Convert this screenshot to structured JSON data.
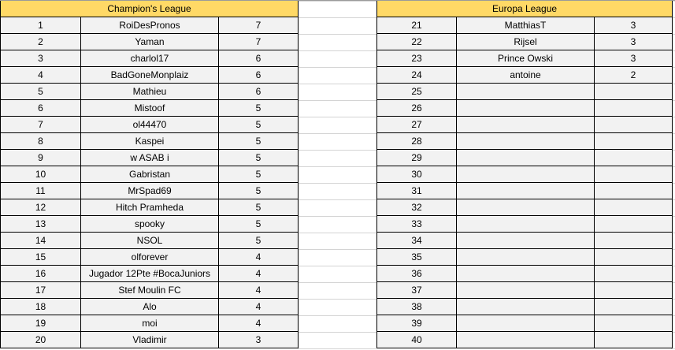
{
  "colors": {
    "header": "#ffd966",
    "cell": "#f2f2f2",
    "border": "#000000"
  },
  "champions_league": {
    "title": "Champion's League",
    "rows": [
      {
        "rank": "1",
        "name": "RoiDesPronos",
        "points": "7"
      },
      {
        "rank": "2",
        "name": "Yaman",
        "points": "7"
      },
      {
        "rank": "3",
        "name": "charlol17",
        "points": "6"
      },
      {
        "rank": "4",
        "name": "BadGoneMonplaiz",
        "points": "6"
      },
      {
        "rank": "5",
        "name": "Mathieu",
        "points": "6"
      },
      {
        "rank": "6",
        "name": "Mistoof",
        "points": "5"
      },
      {
        "rank": "7",
        "name": "ol44470",
        "points": "5"
      },
      {
        "rank": "8",
        "name": "Kaspei",
        "points": "5"
      },
      {
        "rank": "9",
        "name": "w ASAB i",
        "points": "5"
      },
      {
        "rank": "10",
        "name": "Gabristan",
        "points": "5"
      },
      {
        "rank": "11",
        "name": "MrSpad69",
        "points": "5"
      },
      {
        "rank": "12",
        "name": "Hitch Pramheda",
        "points": "5"
      },
      {
        "rank": "13",
        "name": "spooky",
        "points": "5"
      },
      {
        "rank": "14",
        "name": "NSOL",
        "points": "5"
      },
      {
        "rank": "15",
        "name": "olforever",
        "points": "4"
      },
      {
        "rank": "16",
        "name": "Jugador 12Pte #BocaJuniors",
        "points": "4"
      },
      {
        "rank": "17",
        "name": "Stef Moulin FC",
        "points": "4"
      },
      {
        "rank": "18",
        "name": "Alo",
        "points": "4"
      },
      {
        "rank": "19",
        "name": "moi",
        "points": "4"
      },
      {
        "rank": "20",
        "name": "Vladimir",
        "points": "3"
      }
    ]
  },
  "europa_league": {
    "title": "Europa League",
    "rows": [
      {
        "rank": "21",
        "name": "MatthiasT",
        "points": "3"
      },
      {
        "rank": "22",
        "name": "Rijsel",
        "points": "3"
      },
      {
        "rank": "23",
        "name": "Prince Owski",
        "points": "3"
      },
      {
        "rank": "24",
        "name": "antoine",
        "points": "2"
      },
      {
        "rank": "25",
        "name": "",
        "points": ""
      },
      {
        "rank": "26",
        "name": "",
        "points": ""
      },
      {
        "rank": "27",
        "name": "",
        "points": ""
      },
      {
        "rank": "28",
        "name": "",
        "points": ""
      },
      {
        "rank": "29",
        "name": "",
        "points": ""
      },
      {
        "rank": "30",
        "name": "",
        "points": ""
      },
      {
        "rank": "31",
        "name": "",
        "points": ""
      },
      {
        "rank": "32",
        "name": "",
        "points": ""
      },
      {
        "rank": "33",
        "name": "",
        "points": ""
      },
      {
        "rank": "34",
        "name": "",
        "points": ""
      },
      {
        "rank": "35",
        "name": "",
        "points": ""
      },
      {
        "rank": "36",
        "name": "",
        "points": ""
      },
      {
        "rank": "37",
        "name": "",
        "points": ""
      },
      {
        "rank": "38",
        "name": "",
        "points": ""
      },
      {
        "rank": "39",
        "name": "",
        "points": ""
      },
      {
        "rank": "40",
        "name": "",
        "points": ""
      }
    ]
  }
}
